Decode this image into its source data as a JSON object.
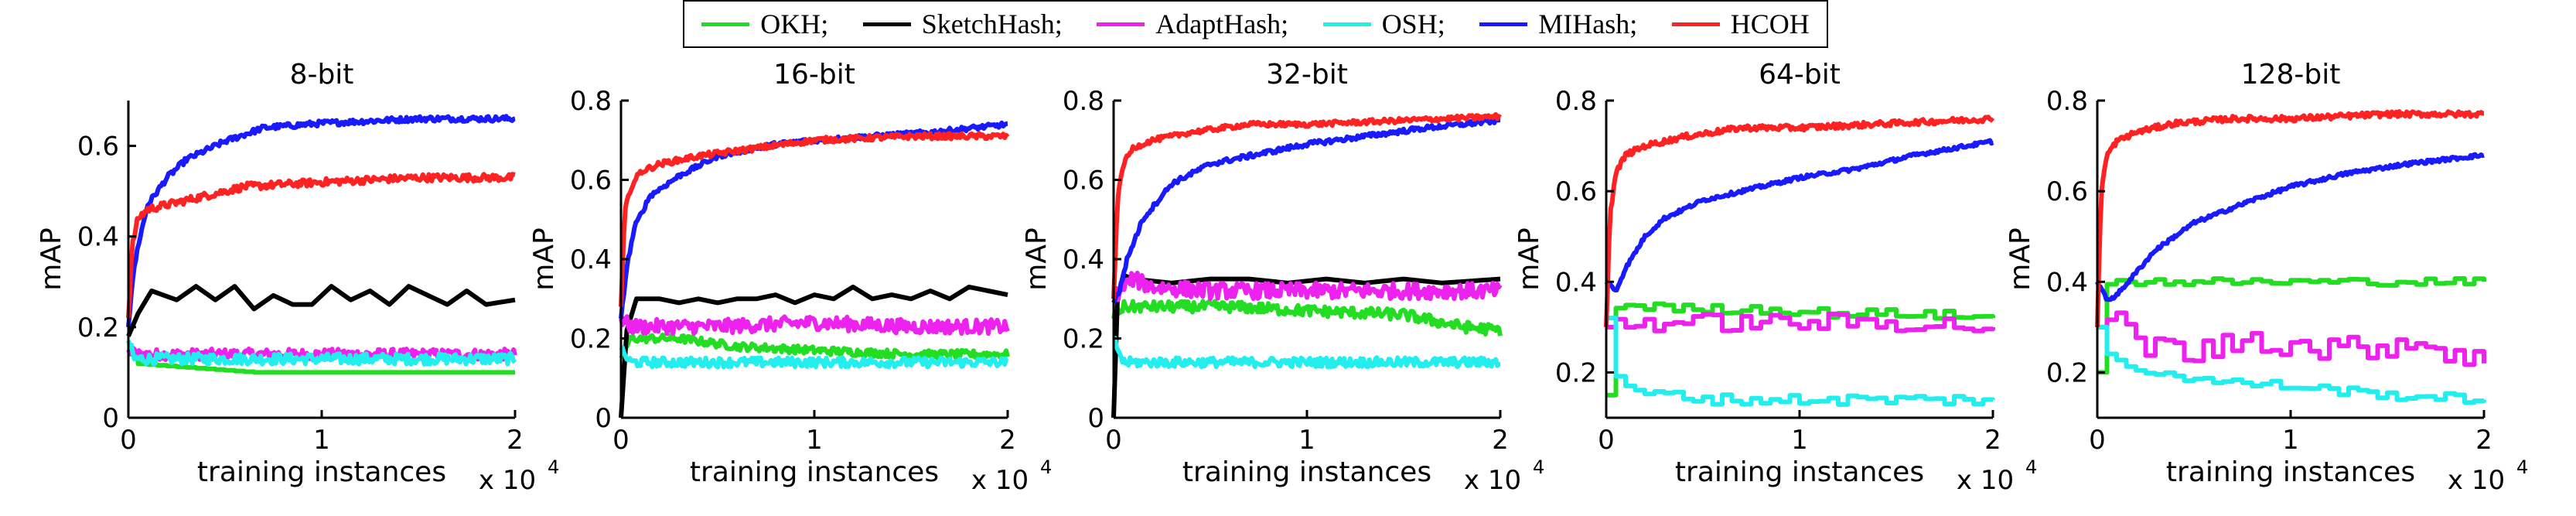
{
  "legend": [
    {
      "label": "OKH;",
      "color": "#22dd22"
    },
    {
      "label": "SketchHash;",
      "color": "#000000"
    },
    {
      "label": "AdaptHash;",
      "color": "#ee22ee"
    },
    {
      "label": "OSH;",
      "color": "#22eeee"
    },
    {
      "label": "MIHash;",
      "color": "#1a1aff"
    },
    {
      "label": "HCOH",
      "color": "#ff2222"
    }
  ],
  "chart_data": [
    {
      "type": "line",
      "title": "8-bit",
      "xlabel": "training instances",
      "ylabel": "mAP",
      "x_multiplier": "x 10",
      "xlim": [
        0,
        2
      ],
      "ylim": [
        0,
        0.7
      ],
      "xticks": [
        "0",
        "1",
        "2"
      ],
      "yticks": [
        "0",
        "0.2",
        "0.4",
        "0.6"
      ],
      "series": [
        {
          "name": "OKH",
          "color": "#22dd22",
          "step": true,
          "noise": 0.0,
          "x": [
            0,
            0.02,
            0.65,
            2.0
          ],
          "y": [
            0.14,
            0.12,
            0.1,
            0.1
          ]
        },
        {
          "name": "SketchHash",
          "color": "#000000",
          "zigzag": true,
          "x": [
            0,
            0.05,
            0.12,
            0.25,
            0.35,
            0.45,
            0.55,
            0.65,
            0.75,
            0.85,
            0.95,
            1.05,
            1.15,
            1.25,
            1.35,
            1.45,
            1.55,
            1.65,
            1.75,
            1.85,
            2.0
          ],
          "y": [
            0.18,
            0.23,
            0.28,
            0.26,
            0.29,
            0.26,
            0.29,
            0.24,
            0.27,
            0.25,
            0.25,
            0.29,
            0.26,
            0.28,
            0.25,
            0.29,
            0.27,
            0.25,
            0.28,
            0.25,
            0.26
          ]
        },
        {
          "name": "AdaptHash",
          "color": "#ee22ee",
          "noise": 0.012,
          "x": [
            0,
            0.05,
            0.5,
            1.0,
            1.5,
            2.0
          ],
          "y": [
            0.15,
            0.14,
            0.14,
            0.14,
            0.14,
            0.14
          ]
        },
        {
          "name": "OSH",
          "color": "#22eeee",
          "noise": 0.012,
          "x": [
            0,
            0.03,
            0.5,
            1.0,
            1.5,
            2.0
          ],
          "y": [
            0.17,
            0.13,
            0.13,
            0.13,
            0.13,
            0.13
          ]
        },
        {
          "name": "MIHash",
          "color": "#1a1aff",
          "noise": 0.006,
          "x": [
            0,
            0.02,
            0.05,
            0.1,
            0.2,
            0.3,
            0.5,
            0.7,
            1.0,
            1.5,
            2.0
          ],
          "y": [
            0.2,
            0.3,
            0.38,
            0.47,
            0.53,
            0.57,
            0.61,
            0.64,
            0.65,
            0.66,
            0.66
          ]
        },
        {
          "name": "HCOH",
          "color": "#ff2222",
          "noise": 0.008,
          "x": [
            0,
            0.02,
            0.05,
            0.1,
            0.2,
            0.4,
            0.6,
            1.0,
            1.5,
            2.0
          ],
          "y": [
            0.22,
            0.38,
            0.44,
            0.46,
            0.47,
            0.49,
            0.51,
            0.52,
            0.53,
            0.53
          ]
        }
      ]
    },
    {
      "type": "line",
      "title": "16-bit",
      "xlabel": "training instances",
      "ylabel": "mAP",
      "x_multiplier": "x 10",
      "xlim": [
        0,
        2
      ],
      "ylim": [
        0,
        0.8
      ],
      "xticks": [
        "0",
        "1",
        "2"
      ],
      "yticks": [
        "0",
        "0.2",
        "0.4",
        "0.6",
        "0.8"
      ],
      "series": [
        {
          "name": "OKH",
          "color": "#22dd22",
          "noise": 0.01,
          "x": [
            0,
            0.05,
            0.3,
            0.6,
            1.0,
            1.5,
            2.0
          ],
          "y": [
            0.15,
            0.2,
            0.2,
            0.18,
            0.17,
            0.16,
            0.16
          ]
        },
        {
          "name": "SketchHash",
          "color": "#000000",
          "zigzag": true,
          "x": [
            0,
            0.03,
            0.08,
            0.2,
            0.3,
            0.4,
            0.5,
            0.6,
            0.7,
            0.8,
            0.9,
            1.0,
            1.1,
            1.2,
            1.3,
            1.4,
            1.5,
            1.6,
            1.7,
            1.8,
            1.9,
            2.0
          ],
          "y": [
            0.0,
            0.22,
            0.3,
            0.3,
            0.29,
            0.3,
            0.29,
            0.3,
            0.3,
            0.31,
            0.29,
            0.31,
            0.3,
            0.33,
            0.3,
            0.31,
            0.3,
            0.32,
            0.3,
            0.33,
            0.32,
            0.31
          ]
        },
        {
          "name": "AdaptHash",
          "color": "#ee22ee",
          "noise": 0.018,
          "x": [
            0,
            0.05,
            0.5,
            1.0,
            1.5,
            2.0
          ],
          "y": [
            0.25,
            0.23,
            0.23,
            0.24,
            0.23,
            0.23
          ]
        },
        {
          "name": "OSH",
          "color": "#22eeee",
          "noise": 0.012,
          "x": [
            0,
            0.05,
            0.5,
            1.0,
            1.5,
            2.0
          ],
          "y": [
            0.17,
            0.14,
            0.14,
            0.14,
            0.14,
            0.14
          ]
        },
        {
          "name": "MIHash",
          "color": "#1a1aff",
          "noise": 0.006,
          "x": [
            0,
            0.03,
            0.07,
            0.15,
            0.3,
            0.5,
            0.8,
            1.0,
            1.3,
            1.6,
            2.0
          ],
          "y": [
            0.25,
            0.38,
            0.48,
            0.56,
            0.61,
            0.66,
            0.69,
            0.7,
            0.71,
            0.72,
            0.74
          ]
        },
        {
          "name": "HCOH",
          "color": "#ff2222",
          "noise": 0.007,
          "x": [
            0,
            0.02,
            0.05,
            0.1,
            0.2,
            0.4,
            0.7,
            1.0,
            1.5,
            2.0
          ],
          "y": [
            0.28,
            0.52,
            0.58,
            0.62,
            0.64,
            0.66,
            0.68,
            0.7,
            0.71,
            0.71
          ]
        }
      ]
    },
    {
      "type": "line",
      "title": "32-bit",
      "xlabel": "training instances",
      "ylabel": "mAP",
      "x_multiplier": "x 10",
      "xlim": [
        0,
        2
      ],
      "ylim": [
        0,
        0.8
      ],
      "xticks": [
        "0",
        "1",
        "2"
      ],
      "yticks": [
        "0",
        "0.2",
        "0.4",
        "0.6",
        "0.8"
      ],
      "series": [
        {
          "name": "OKH",
          "color": "#22dd22",
          "noise": 0.014,
          "x": [
            0,
            0.05,
            0.3,
            0.6,
            1.0,
            1.5,
            1.8,
            2.0
          ],
          "y": [
            0.25,
            0.28,
            0.28,
            0.28,
            0.27,
            0.26,
            0.23,
            0.22
          ]
        },
        {
          "name": "SketchHash",
          "color": "#000000",
          "zigzag": true,
          "x": [
            0,
            0.02,
            0.05,
            0.1,
            0.3,
            0.5,
            0.7,
            0.9,
            1.1,
            1.3,
            1.5,
            1.7,
            2.0
          ],
          "y": [
            0.0,
            0.3,
            0.36,
            0.35,
            0.34,
            0.35,
            0.35,
            0.34,
            0.35,
            0.34,
            0.35,
            0.34,
            0.35
          ]
        },
        {
          "name": "AdaptHash",
          "color": "#ee22ee",
          "noise": 0.02,
          "x": [
            0,
            0.05,
            0.1,
            0.2,
            0.5,
            1.0,
            1.5,
            2.0
          ],
          "y": [
            0.3,
            0.33,
            0.35,
            0.33,
            0.32,
            0.32,
            0.32,
            0.32
          ]
        },
        {
          "name": "OSH",
          "color": "#22eeee",
          "noise": 0.012,
          "x": [
            0,
            0.05,
            0.5,
            1.0,
            1.5,
            2.0
          ],
          "y": [
            0.2,
            0.14,
            0.14,
            0.14,
            0.14,
            0.14
          ]
        },
        {
          "name": "MIHash",
          "color": "#1a1aff",
          "noise": 0.006,
          "x": [
            0,
            0.03,
            0.07,
            0.15,
            0.3,
            0.5,
            0.8,
            1.0,
            1.3,
            1.6,
            2.0
          ],
          "y": [
            0.29,
            0.32,
            0.4,
            0.5,
            0.59,
            0.64,
            0.67,
            0.69,
            0.71,
            0.73,
            0.75
          ]
        },
        {
          "name": "HCOH",
          "color": "#ff2222",
          "noise": 0.006,
          "x": [
            0,
            0.02,
            0.05,
            0.1,
            0.2,
            0.4,
            0.7,
            1.0,
            1.5,
            2.0
          ],
          "y": [
            0.3,
            0.55,
            0.64,
            0.68,
            0.7,
            0.72,
            0.74,
            0.74,
            0.75,
            0.76
          ]
        }
      ]
    },
    {
      "type": "line",
      "title": "64-bit",
      "xlabel": "training instances",
      "ylabel": "mAP",
      "x_multiplier": "x 10",
      "xlim": [
        0,
        2
      ],
      "ylim": [
        0.1,
        0.8
      ],
      "xticks": [
        "0",
        "1",
        "2"
      ],
      "yticks": [
        "0.2",
        "0.4",
        "0.6",
        "0.8"
      ],
      "series": [
        {
          "name": "OKH",
          "color": "#22dd22",
          "step": true,
          "noise": 0.01,
          "x": [
            0,
            0.05,
            0.1,
            0.4,
            0.8,
            1.2,
            1.6,
            2.0
          ],
          "y": [
            0.15,
            0.34,
            0.35,
            0.34,
            0.34,
            0.33,
            0.33,
            0.32
          ]
        },
        {
          "name": "AdaptHash",
          "color": "#ee22ee",
          "step": true,
          "noise": 0.02,
          "x": [
            0,
            0.05,
            0.3,
            0.6,
            1.0,
            1.5,
            2.0
          ],
          "y": [
            0.3,
            0.31,
            0.31,
            0.31,
            0.31,
            0.31,
            0.3
          ]
        },
        {
          "name": "OSH",
          "color": "#22eeee",
          "step": true,
          "noise": 0.012,
          "x": [
            0,
            0.03,
            0.1,
            0.3,
            0.6,
            1.0,
            1.5,
            2.0
          ],
          "y": [
            0.32,
            0.2,
            0.16,
            0.15,
            0.14,
            0.14,
            0.14,
            0.14
          ]
        },
        {
          "name": "MIHash",
          "color": "#1a1aff",
          "noise": 0.004,
          "x": [
            0,
            0.05,
            0.1,
            0.2,
            0.3,
            0.5,
            0.8,
            1.0,
            1.3,
            1.6,
            2.0
          ],
          "y": [
            0.4,
            0.38,
            0.43,
            0.5,
            0.54,
            0.58,
            0.61,
            0.63,
            0.65,
            0.68,
            0.71
          ]
        },
        {
          "name": "HCOH",
          "color": "#ff2222",
          "noise": 0.006,
          "x": [
            0,
            0.02,
            0.05,
            0.1,
            0.2,
            0.4,
            0.7,
            1.0,
            1.5,
            2.0
          ],
          "y": [
            0.3,
            0.55,
            0.64,
            0.68,
            0.7,
            0.72,
            0.74,
            0.74,
            0.75,
            0.76
          ]
        }
      ]
    },
    {
      "type": "line",
      "title": "128-bit",
      "xlabel": "training instances",
      "ylabel": "mAP",
      "x_multiplier": "x 10",
      "xlim": [
        0,
        2
      ],
      "ylim": [
        0.1,
        0.8
      ],
      "xticks": [
        "0",
        "1",
        "2"
      ],
      "yticks": [
        "0.2",
        "0.4",
        "0.6",
        "0.8"
      ],
      "series": [
        {
          "name": "OKH",
          "color": "#22dd22",
          "step": true,
          "noise": 0.008,
          "x": [
            0,
            0.03,
            0.1,
            0.5,
            1.0,
            1.5,
            2.0
          ],
          "y": [
            0.2,
            0.4,
            0.4,
            0.4,
            0.4,
            0.4,
            0.4
          ]
        },
        {
          "name": "AdaptHash",
          "color": "#ee22ee",
          "step": true,
          "noise": 0.03,
          "x": [
            0,
            0.05,
            0.2,
            0.5,
            0.8,
            1.0,
            1.3,
            1.6,
            1.8,
            2.0
          ],
          "y": [
            0.3,
            0.33,
            0.27,
            0.24,
            0.28,
            0.26,
            0.25,
            0.27,
            0.25,
            0.22
          ]
        },
        {
          "name": "OSH",
          "color": "#22eeee",
          "step": true,
          "noise": 0.01,
          "x": [
            0,
            0.03,
            0.1,
            0.3,
            0.6,
            1.0,
            1.5,
            2.0
          ],
          "y": [
            0.3,
            0.25,
            0.22,
            0.2,
            0.18,
            0.17,
            0.15,
            0.14
          ]
        },
        {
          "name": "MIHash",
          "color": "#1a1aff",
          "noise": 0.004,
          "x": [
            0,
            0.05,
            0.1,
            0.2,
            0.3,
            0.5,
            0.8,
            1.0,
            1.3,
            1.6,
            2.0
          ],
          "y": [
            0.4,
            0.36,
            0.37,
            0.42,
            0.47,
            0.53,
            0.58,
            0.61,
            0.64,
            0.66,
            0.68
          ]
        },
        {
          "name": "HCOH",
          "color": "#ff2222",
          "noise": 0.006,
          "x": [
            0,
            0.02,
            0.05,
            0.1,
            0.2,
            0.4,
            0.7,
            1.0,
            1.5,
            2.0
          ],
          "y": [
            0.3,
            0.6,
            0.68,
            0.71,
            0.73,
            0.75,
            0.76,
            0.76,
            0.77,
            0.77
          ]
        }
      ]
    }
  ]
}
